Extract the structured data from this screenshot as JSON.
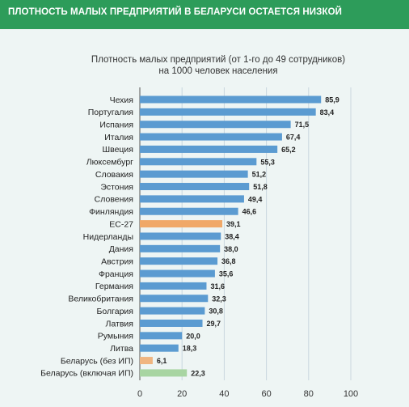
{
  "banner": {
    "title": "ПЛОТНОСТЬ МАЛЫХ ПРЕДПРИЯТИЙ В БЕЛАРУСИ ОСТАЕТСЯ НИЗКОЙ",
    "color": "#2d9c5a"
  },
  "chart_data": {
    "type": "bar",
    "orientation": "horizontal",
    "title_line1": "Плотность малых предприятий (от 1-го до 49 сотрудников)",
    "title_line2": "на 1000 человек населения",
    "xlabel": "",
    "ylabel": "",
    "xlim": [
      0,
      100
    ],
    "xticks": [
      "0",
      "20",
      "40",
      "60",
      "80",
      "100"
    ],
    "grid": true,
    "categories": [
      "Чехия",
      "Португалия",
      "Испания",
      "Италия",
      "Швеция",
      "Люксембург",
      "Словакия",
      "Эстония",
      "Словения",
      "Финляндия",
      "ЕС-27",
      "Нидерланды",
      "Дания",
      "Австрия",
      "Франция",
      "Германия",
      "Великобритания",
      "Болгария",
      "Латвия",
      "Румыния",
      "Литва",
      "Беларусь (без ИП)",
      "Беларусь (включая ИП)"
    ],
    "values": [
      85.9,
      83.4,
      71.5,
      67.4,
      65.2,
      55.3,
      51.2,
      51.8,
      49.4,
      46.6,
      39.1,
      38.4,
      38.0,
      36.8,
      35.6,
      31.6,
      32.3,
      30.8,
      29.7,
      20.0,
      18.3,
      6.1,
      22.3
    ],
    "value_labels": [
      "85,9",
      "83,4",
      "71,5",
      "67,4",
      "65,2",
      "55,3",
      "51,2",
      "51,8",
      "49,4",
      "46,6",
      "39,1",
      "38,4",
      "38,0",
      "36,8",
      "35,6",
      "31,6",
      "32,3",
      "30,8",
      "29,7",
      "20,0",
      "18,3",
      "6,1",
      "22,3"
    ],
    "colors": {
      "default": "#5b9bd1",
      "ЕС-27": "#f0a868",
      "Беларусь (без ИП)": "#f0b580",
      "Беларусь (включая ИП)": "#a8d5a2",
      "grid": "#c9d6de",
      "axis": "#555555"
    }
  }
}
